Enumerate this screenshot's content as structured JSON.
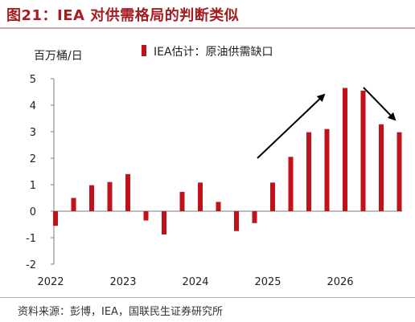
{
  "title": "图21：IEA 对供需格局的判断类似",
  "source": "资料来源：彭博，IEA，国联民生证券研究所",
  "colors": {
    "bar": "#c0121b",
    "title": "#a31d22",
    "axis": "#7f7f7f",
    "zero": "#a6a6a6"
  },
  "chart_data": {
    "type": "bar",
    "ylabel": "百万桶/日",
    "legend": [
      "IEA估计：原油供需缺口"
    ],
    "legend_position": "top",
    "ylim": [
      -2,
      5
    ],
    "yticks": [
      "-2",
      "-1",
      "0",
      "1",
      "2",
      "3",
      "4",
      "5"
    ],
    "xticks": [
      "2022",
      "2023",
      "2024",
      "2025",
      "2026"
    ],
    "grid": false,
    "series": [
      {
        "values": [
          -0.55,
          0.5,
          0.98,
          1.1,
          1.4,
          -0.35,
          -0.88,
          0.73,
          1.08,
          0.35,
          -0.75,
          -0.45,
          1.08,
          2.05,
          2.98,
          3.1,
          4.65,
          4.55,
          3.28,
          2.98
        ]
      }
    ],
    "annotations": [
      "arrow-up",
      "arrow-down"
    ]
  }
}
